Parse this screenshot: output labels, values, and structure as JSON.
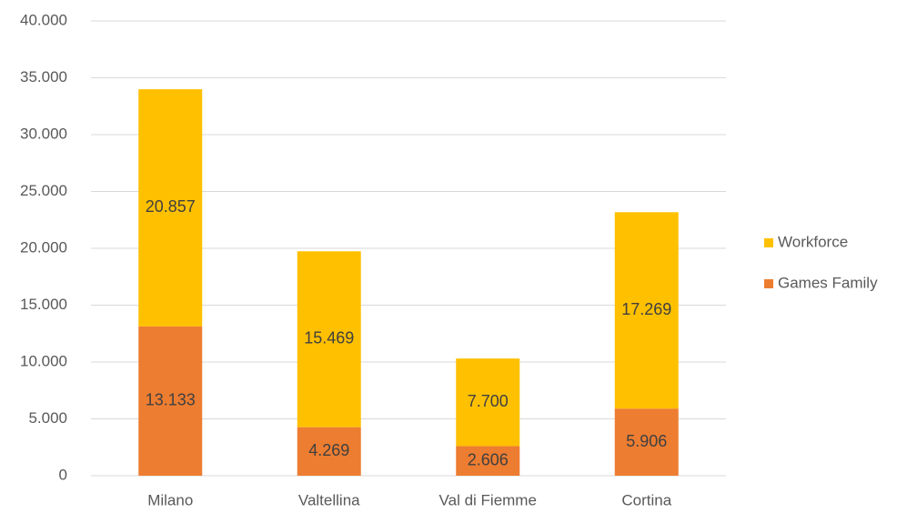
{
  "chart_data": {
    "type": "stacked_bar",
    "categories": [
      "Milano",
      "Valtellina",
      "Val di Fiemme",
      "Cortina"
    ],
    "series": [
      {
        "name": "Games Family",
        "color": "#ed7d31",
        "values": [
          13133,
          4269,
          2606,
          5906
        ],
        "value_labels": [
          "13.133",
          "4.269",
          "2.606",
          "5.906"
        ]
      },
      {
        "name": "Workforce",
        "color": "#ffc000",
        "values": [
          20857,
          15469,
          7700,
          17269
        ],
        "value_labels": [
          "20.857",
          "15.469",
          "7.700",
          "17.269"
        ]
      }
    ],
    "ylim": [
      0,
      40000
    ],
    "yticks": [
      0,
      {
        "value": 5000,
        "label": "5.000"
      },
      {
        "value": 10000,
        "label": "10.000"
      },
      {
        "value": 15000,
        "label": "15.000"
      },
      {
        "value": 20000,
        "label": "20.000"
      },
      {
        "value": 25000,
        "label": "25.000"
      },
      {
        "value": 30000,
        "label": "30.000"
      },
      {
        "value": 35000,
        "label": "35.000"
      },
      {
        "value": 40000,
        "label": "40.000"
      }
    ],
    "grid": true,
    "legend": "right"
  }
}
